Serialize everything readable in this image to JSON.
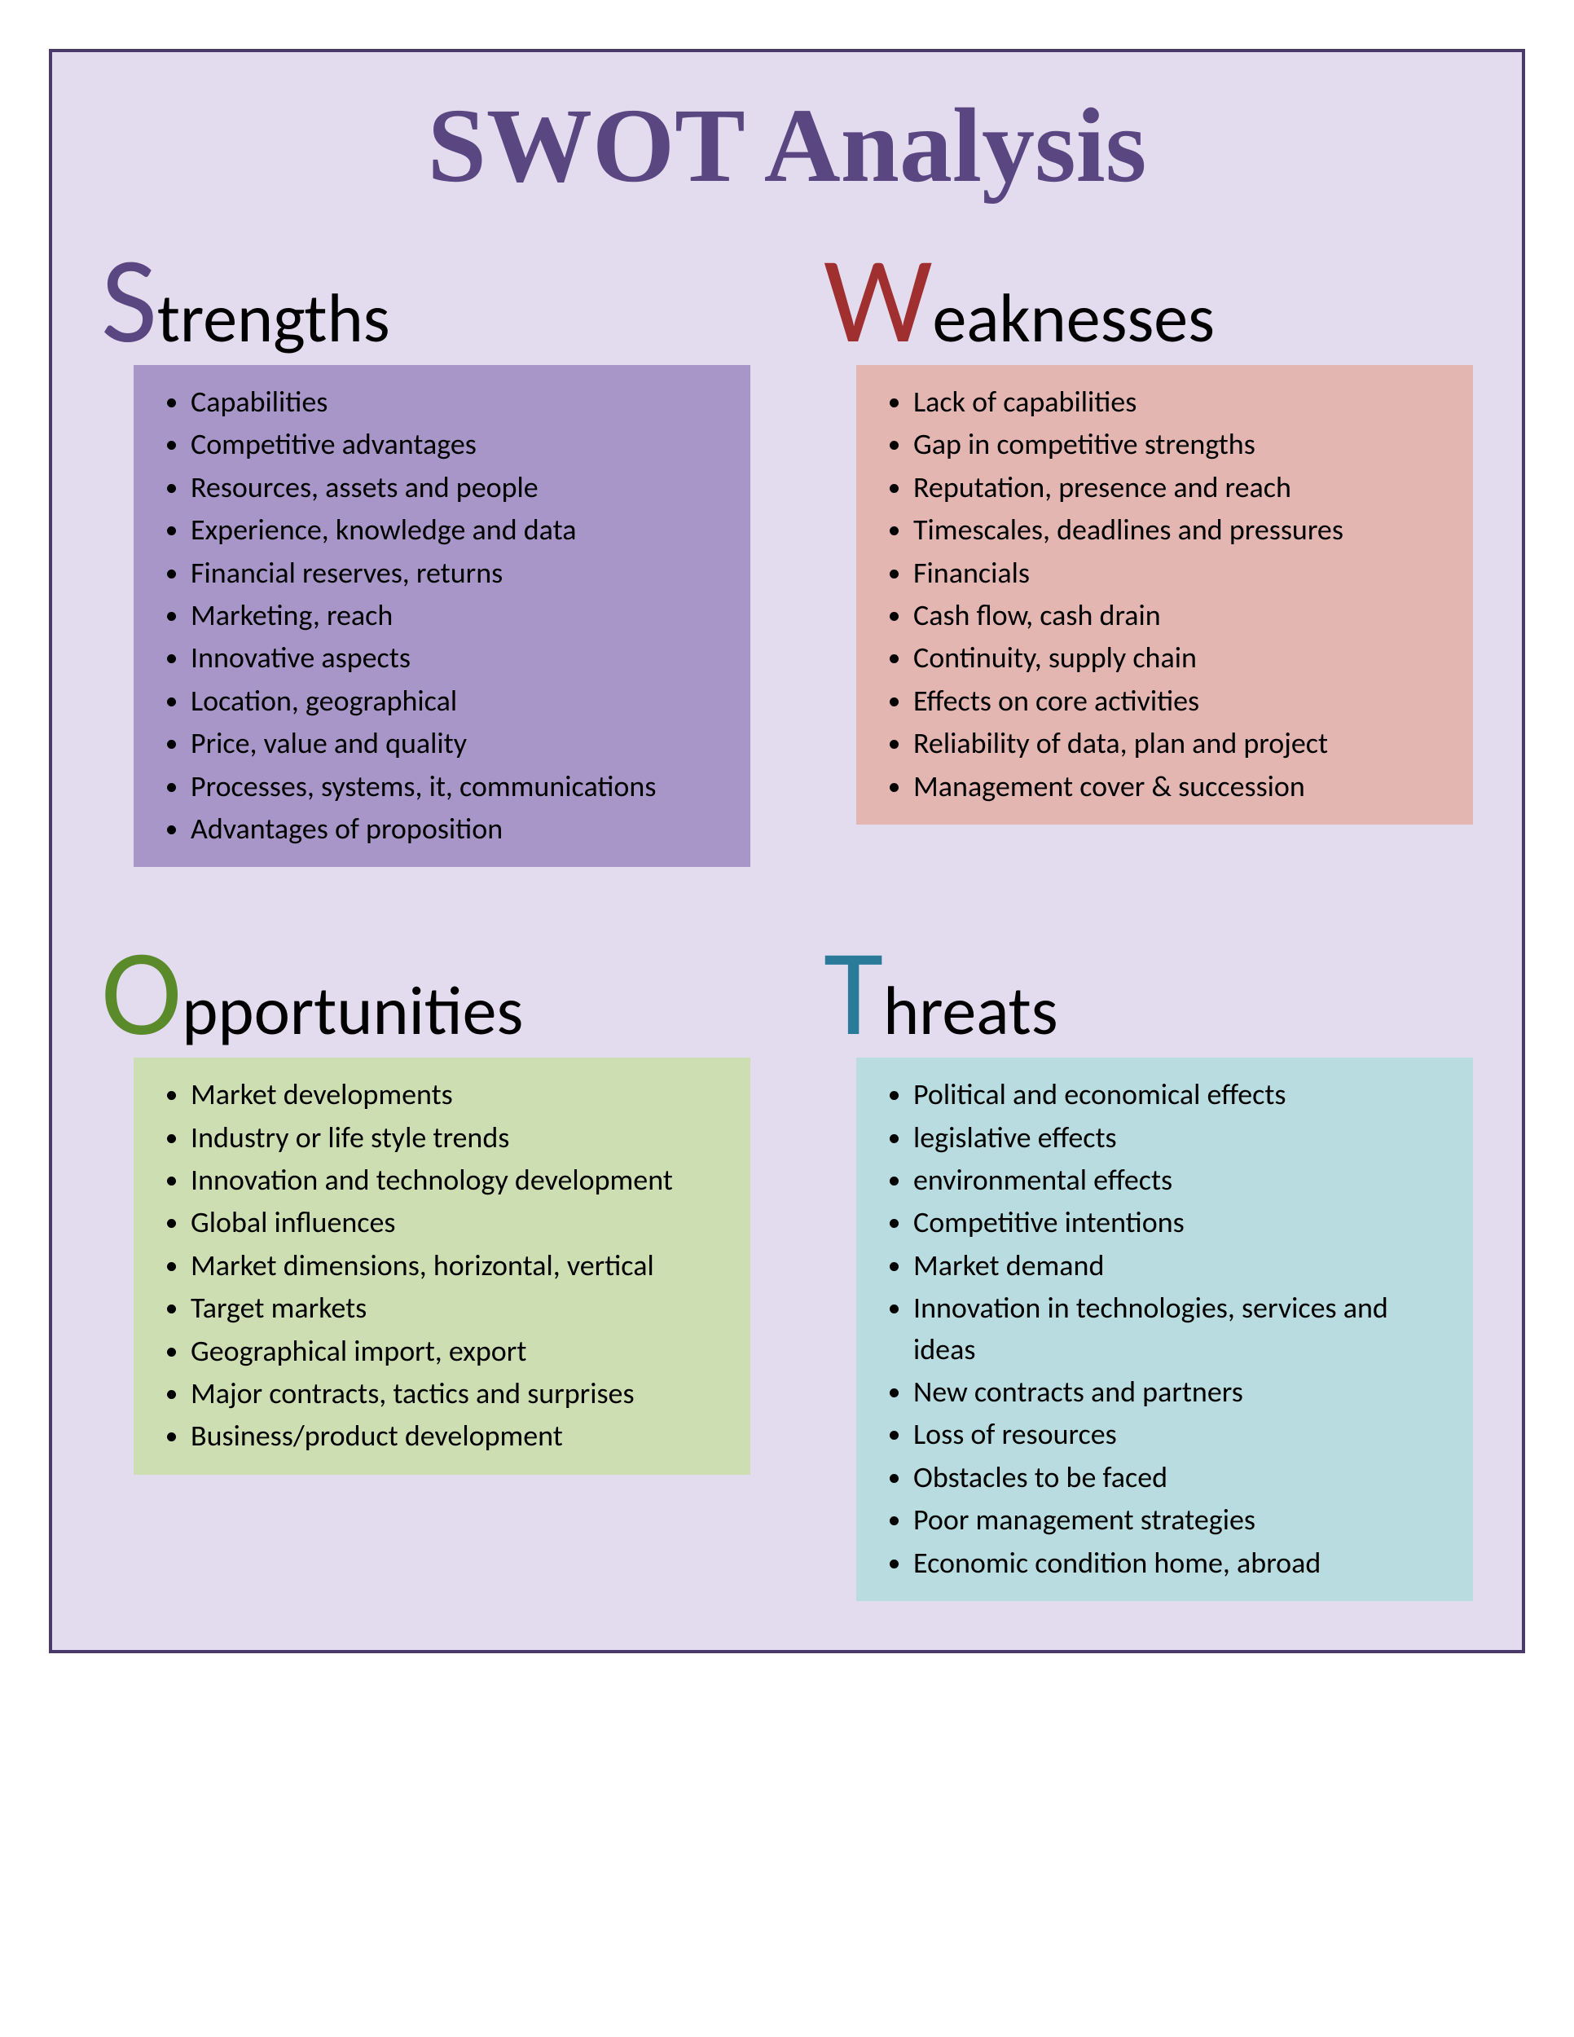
{
  "title": "SWOT Analysis",
  "page_background": "#ffffff",
  "container": {
    "background": "#e3dcee",
    "border_color": "#4a3a6a",
    "border_width": 4
  },
  "title_style": {
    "color": "#5a4680",
    "font_size": 130,
    "font_family": "Times New Roman"
  },
  "heading_style": {
    "letter_font_size": 150,
    "rest_font_size": 84,
    "rest_color": "#000000"
  },
  "list_style": {
    "font_size": 36,
    "color": "#000000"
  },
  "quadrants": [
    {
      "letter": "S",
      "rest": "trengths",
      "letter_color": "#5a4680",
      "box_color": "#a896c8",
      "items": [
        "Capabilities",
        "Competitive advantages",
        "Resources, assets and people",
        "Experience, knowledge and data",
        "Financial reserves, returns",
        "Marketing, reach",
        "Innovative aspects",
        "Location, geographical",
        "Price, value and quality",
        "Processes, systems, it, communications",
        "Advantages of proposition"
      ]
    },
    {
      "letter": "W",
      "rest": "eaknesses",
      "letter_color": "#a03030",
      "box_color": "#e4b6b2",
      "items": [
        "Lack of capabilities",
        "Gap in competitive strengths",
        "Reputation, presence and reach",
        "Timescales, deadlines and pressures",
        "Financials",
        "Cash flow, cash drain",
        "Continuity, supply chain",
        "Effects on core activities",
        "Reliability of data, plan and project",
        "Management cover & succession"
      ]
    },
    {
      "letter": "O",
      "rest": "pportunities",
      "letter_color": "#5a8a2a",
      "box_color": "#cddfb2",
      "items": [
        "Market developments",
        "Industry or life style trends",
        "Innovation and technology development",
        "Global influences",
        "Market dimensions, horizontal, vertical",
        "Target markets",
        "Geographical import, export",
        "Major contracts, tactics and surprises",
        "Business/product development"
      ]
    },
    {
      "letter": "T",
      "rest": "hreats",
      "letter_color": "#2a7a9a",
      "box_color": "#b8dce0",
      "items": [
        "Political and economical effects",
        "legislative effects",
        "environmental effects",
        "Competitive intentions",
        "Market demand",
        "Innovation in technologies, services and ideas",
        "New contracts and partners",
        "Loss of resources",
        "Obstacles to be faced",
        "Poor management strategies",
        "Economic condition home, abroad"
      ]
    }
  ]
}
